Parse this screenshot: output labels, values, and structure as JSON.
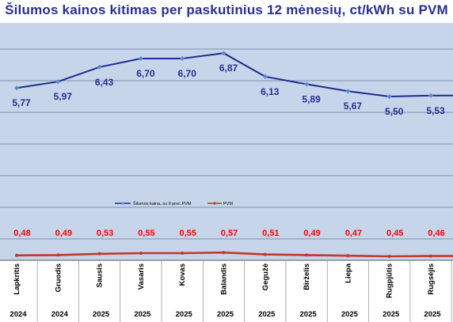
{
  "chart_data": {
    "type": "line",
    "title": "Šilumos kainos kitimas per paskutinius 12 mėnesių, ct/kWh su PVM",
    "categories": [
      "Lapkritis",
      "Gruodis",
      "Sausis",
      "Vasaris",
      "Kovas",
      "Balandis",
      "Gegužė",
      "Birželis",
      "Liepa",
      "Rugpjūtis",
      "Rugsėjis"
    ],
    "years": [
      "2024",
      "2024",
      "2025",
      "2025",
      "2025",
      "2025",
      "2025",
      "2025",
      "2025",
      "2025",
      "2025"
    ],
    "series": [
      {
        "name": "Šilumos kaina, su 9 proc.PVM",
        "color": "#1f2d8f",
        "values": [
          5.77,
          5.97,
          6.43,
          6.7,
          6.7,
          6.87,
          6.13,
          5.89,
          5.67,
          5.5,
          5.53
        ],
        "labels": [
          "5,77",
          "5,97",
          "6,43",
          "6,70",
          "6,70",
          "6,87",
          "6,13",
          "5,89",
          "5,67",
          "5,50",
          "5,53"
        ]
      },
      {
        "name": "PVM",
        "color": "#c0392b",
        "values": [
          0.48,
          0.49,
          0.53,
          0.55,
          0.55,
          0.57,
          0.51,
          0.49,
          0.47,
          0.45,
          0.46
        ],
        "labels": [
          "0,48",
          "0,49",
          "0,53",
          "0,55",
          "0,55",
          "0,57",
          "0,51",
          "0,49",
          "0,47",
          "0,45",
          "0,46"
        ]
      }
    ],
    "grid": true,
    "legend_position": "middle-left",
    "colors": {
      "plot_bg": "#c6d5ea",
      "grid": "#7f93ad",
      "title": "#2a2f8f",
      "vat_label": "#ff0000",
      "main_label": "#2a2f8f",
      "marker": "#5b8bd0"
    }
  }
}
